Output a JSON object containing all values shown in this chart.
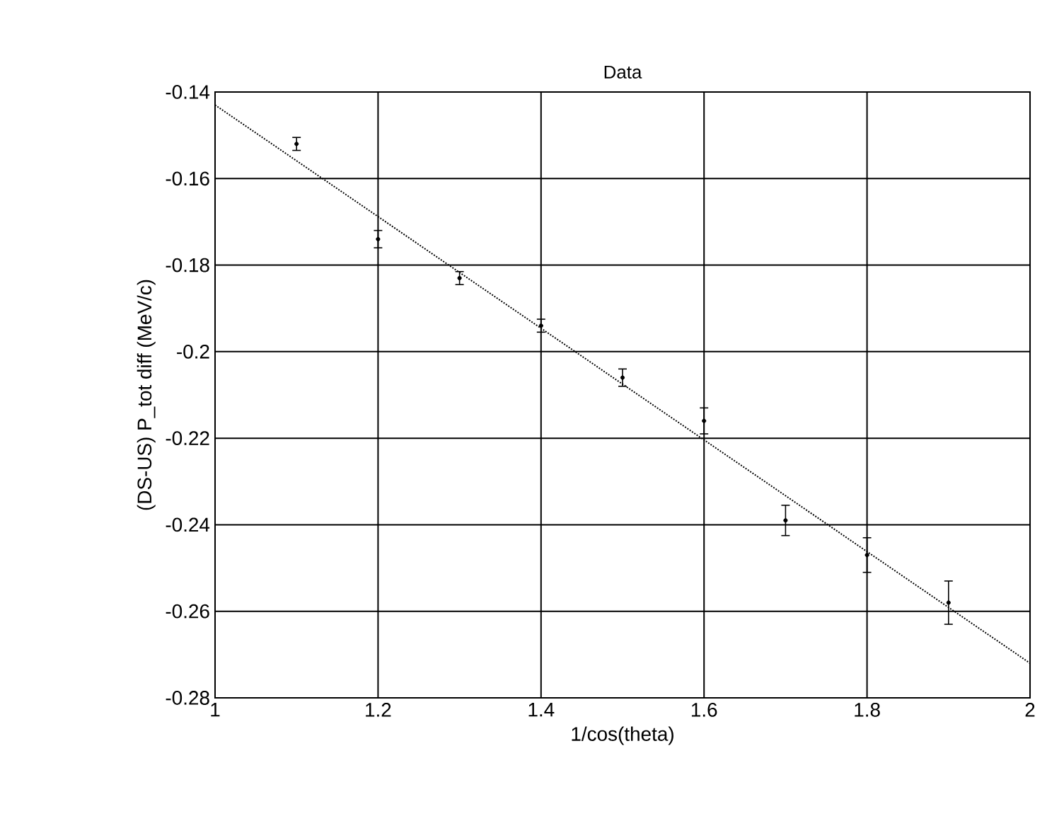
{
  "chart_data": {
    "type": "scatter",
    "title": "Data",
    "xlabel": "1/cos(theta)",
    "ylabel": "(DS-US) P_tot diff (MeV/c)",
    "xlim": [
      1,
      2
    ],
    "xticks": [
      1,
      1.2,
      1.4,
      1.6,
      1.8,
      2
    ],
    "ylim": [
      -0.28,
      -0.14
    ],
    "yticks": [
      -0.28,
      -0.26,
      -0.24,
      -0.22,
      -0.2,
      -0.18,
      -0.16,
      -0.14
    ],
    "grid": true,
    "series": [
      {
        "color": "#000000",
        "marker": "circle",
        "x": [
          1.1,
          1.2,
          1.3,
          1.4,
          1.5,
          1.6,
          1.7,
          1.8,
          1.9
        ],
        "values": [
          -0.152,
          -0.174,
          -0.183,
          -0.194,
          -0.206,
          -0.216,
          -0.239,
          -0.247,
          -0.258
        ],
        "errors": [
          0.0015,
          0.002,
          0.0015,
          0.0015,
          0.002,
          0.003,
          0.0035,
          0.004,
          0.005
        ]
      },
      {
        "type": "line",
        "color": "#000000",
        "line_style": "dotted",
        "x": [
          1,
          2
        ],
        "values": [
          -0.143,
          -0.272
        ]
      }
    ]
  }
}
